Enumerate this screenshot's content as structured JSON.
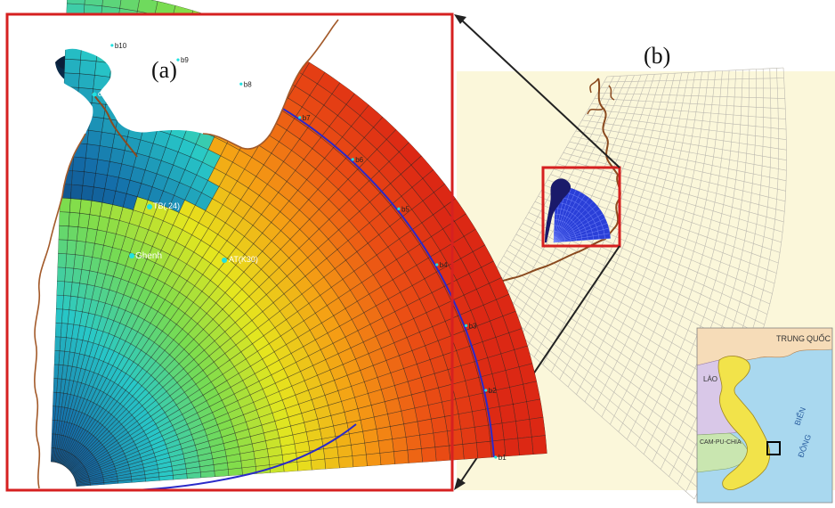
{
  "panels": {
    "a": {
      "label": "(a)"
    },
    "b": {
      "label": "(b)"
    }
  },
  "stations": [
    {
      "id": "TB",
      "label": "TB(.24)"
    },
    {
      "id": "GH",
      "label": "Ghenh"
    },
    {
      "id": "AT",
      "label": "AT(K30)"
    }
  ],
  "boundary_points": [
    "b10",
    "b9",
    "b8",
    "b7",
    "b6",
    "b5",
    "b4",
    "b3",
    "b2",
    "b1"
  ],
  "river_point": "c2",
  "inset": {
    "labels": {
      "trung": "TRUNG",
      "quoc": "QUỐC",
      "lao": "LÀO",
      "campuchia": "CAM-PU-CHIA",
      "bien": "BIỂN",
      "dong": "ĐÔNG"
    }
  },
  "colors": {
    "frame_red": "#d62020",
    "land_beige": "#fbf7da",
    "model_blue": "#2a3fd8",
    "coast_brown": "#8a4a1f",
    "sea_blue": "#a9d8ef",
    "vietnam_yellow": "#f2e34a"
  }
}
